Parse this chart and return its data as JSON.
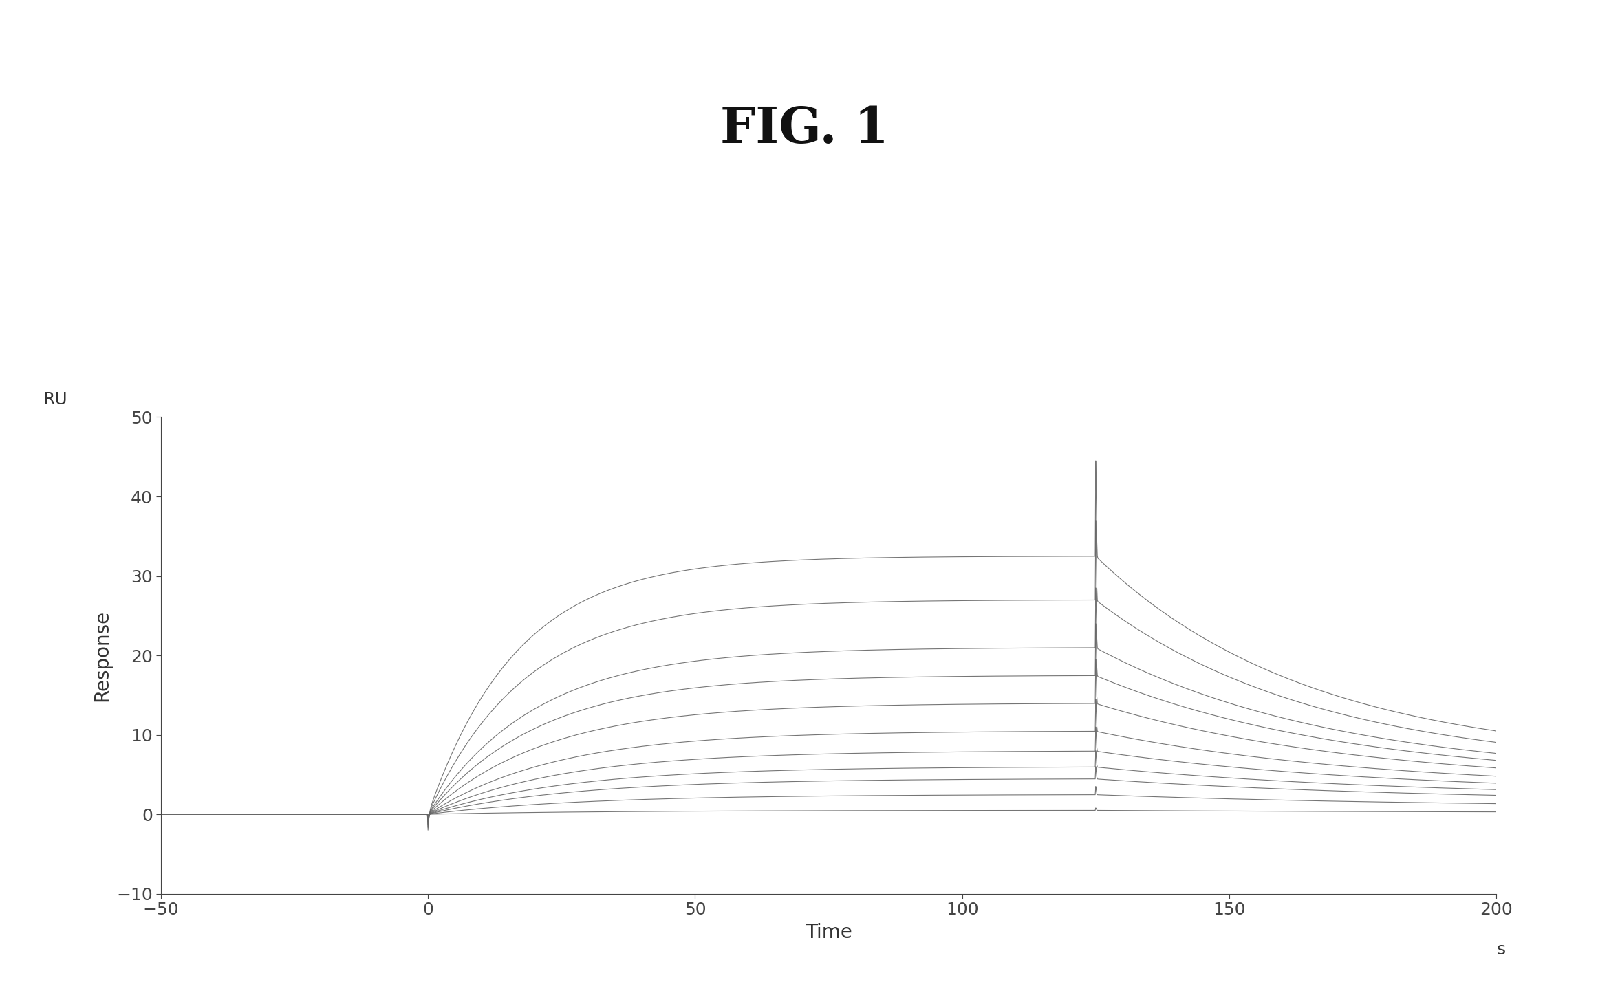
{
  "title": "FIG. 1",
  "xlabel": "Time",
  "ylabel": "Response",
  "xlabel_unit": "s",
  "ylabel_unit": "RU",
  "xlim": [
    -50,
    200
  ],
  "ylim": [
    -10,
    50
  ],
  "xticks": [
    -50,
    0,
    50,
    100,
    150,
    200
  ],
  "yticks": [
    -10,
    0,
    10,
    20,
    30,
    40,
    50
  ],
  "association_start": 0,
  "association_end": 125,
  "dissociation_end": 200,
  "background_color": "#ffffff",
  "line_color": "#666666",
  "title_fontsize": 52,
  "axis_label_fontsize": 20,
  "tick_fontsize": 18,
  "fig_width": 23.39,
  "fig_height": 14.44,
  "dpi": 100,
  "curves": [
    {
      "plateau": 32.5,
      "spike_assoc": 0.0,
      "spike_dissoc": 44.5,
      "dissoc_end": 6.5,
      "ka": 0.06,
      "kd": 0.025
    },
    {
      "plateau": 27.0,
      "spike_assoc": 0.0,
      "spike_dissoc": 37.0,
      "dissoc_end": 5.5,
      "ka": 0.055,
      "kd": 0.024
    },
    {
      "plateau": 21.0,
      "spike_assoc": 0.0,
      "spike_dissoc": 28.5,
      "dissoc_end": 4.5,
      "ka": 0.05,
      "kd": 0.022
    },
    {
      "plateau": 17.5,
      "spike_assoc": 0.0,
      "spike_dissoc": 24.0,
      "dissoc_end": 4.0,
      "ka": 0.048,
      "kd": 0.021
    },
    {
      "plateau": 14.0,
      "spike_assoc": 0.0,
      "spike_dissoc": 19.5,
      "dissoc_end": 3.5,
      "ka": 0.045,
      "kd": 0.02
    },
    {
      "plateau": 10.5,
      "spike_assoc": 0.0,
      "spike_dissoc": 14.5,
      "dissoc_end": 3.0,
      "ka": 0.042,
      "kd": 0.019
    },
    {
      "plateau": 8.0,
      "spike_assoc": 0.0,
      "spike_dissoc": 11.0,
      "dissoc_end": 2.5,
      "ka": 0.04,
      "kd": 0.018
    },
    {
      "plateau": 6.0,
      "spike_assoc": 0.0,
      "spike_dissoc": 8.0,
      "dissoc_end": 2.0,
      "ka": 0.038,
      "kd": 0.017
    },
    {
      "plateau": 4.5,
      "spike_assoc": 0.0,
      "spike_dissoc": 6.0,
      "dissoc_end": 1.5,
      "ka": 0.036,
      "kd": 0.016
    },
    {
      "plateau": 2.5,
      "spike_assoc": 0.0,
      "spike_dissoc": 3.5,
      "dissoc_end": 0.8,
      "ka": 0.034,
      "kd": 0.015
    },
    {
      "plateau": 0.5,
      "spike_assoc": 0.0,
      "spike_dissoc": 0.8,
      "dissoc_end": 0.2,
      "ka": 0.03,
      "kd": 0.014
    }
  ]
}
